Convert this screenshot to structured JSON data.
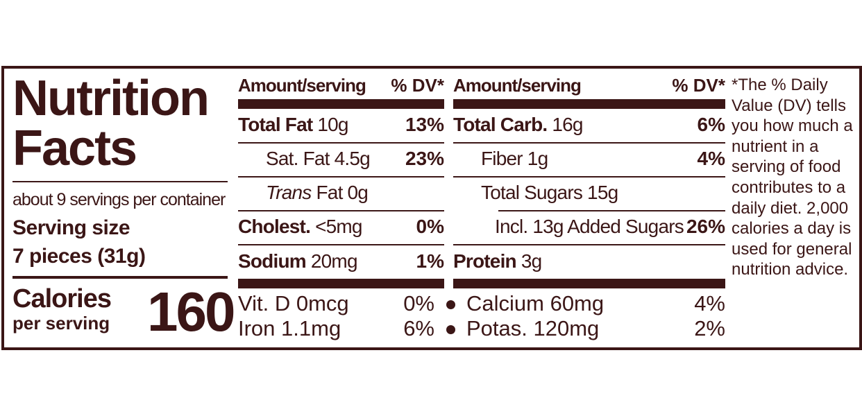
{
  "panel": {
    "title": [
      "Nutrition",
      "Facts"
    ],
    "servings": "about 9 servings per container",
    "serving_size_label": "Serving size",
    "serving_size": "7 pieces (31g)",
    "calories_label": "Calories",
    "calories_sub": "per serving",
    "calories": 160
  },
  "columns": [
    {
      "header": {
        "amount": "Amount/serving",
        "dv": "% DV*"
      },
      "rows": [
        {
          "name": "Total Fat",
          "amount": "10g",
          "dv": "13%"
        },
        {
          "name": "Sat. Fat",
          "amount": "4.5g",
          "dv": "23%"
        },
        {
          "name": "Trans",
          "amount": "Fat 0g"
        },
        {
          "name": "Cholest.",
          "amount": "<5mg",
          "dv": "0%"
        },
        {
          "name": "Sodium",
          "amount": "20mg",
          "dv": "1%"
        }
      ]
    },
    {
      "header": {
        "amount": "Amount/serving",
        "dv": "% DV*"
      },
      "rows": [
        {
          "name": "Total Carb.",
          "amount": "16g",
          "dv": "6%"
        },
        {
          "name": "Fiber",
          "amount": "1g",
          "dv": "4%"
        },
        {
          "name": "Total Sugars",
          "amount": "15g"
        },
        {
          "name": "Incl. 13g Added Sugars",
          "dv": "26%"
        },
        {
          "name": "Protein",
          "amount": "3g"
        }
      ]
    }
  ],
  "vitamins": [
    [
      {
        "name": "Vit. D 0mcg",
        "dv": "0%"
      },
      {
        "name": "Iron 1.1mg",
        "dv": "6%"
      }
    ],
    [
      {
        "name": "Calcium 60mg",
        "dv": "4%"
      },
      {
        "name": "Potas. 120mg",
        "dv": "2%"
      }
    ]
  ],
  "footnote": "*The % Daily Value (DV) tells you how much a nutrient in a serving of food contributes to a daily diet. 2,000 calories a day is used for general nutrition advice."
}
